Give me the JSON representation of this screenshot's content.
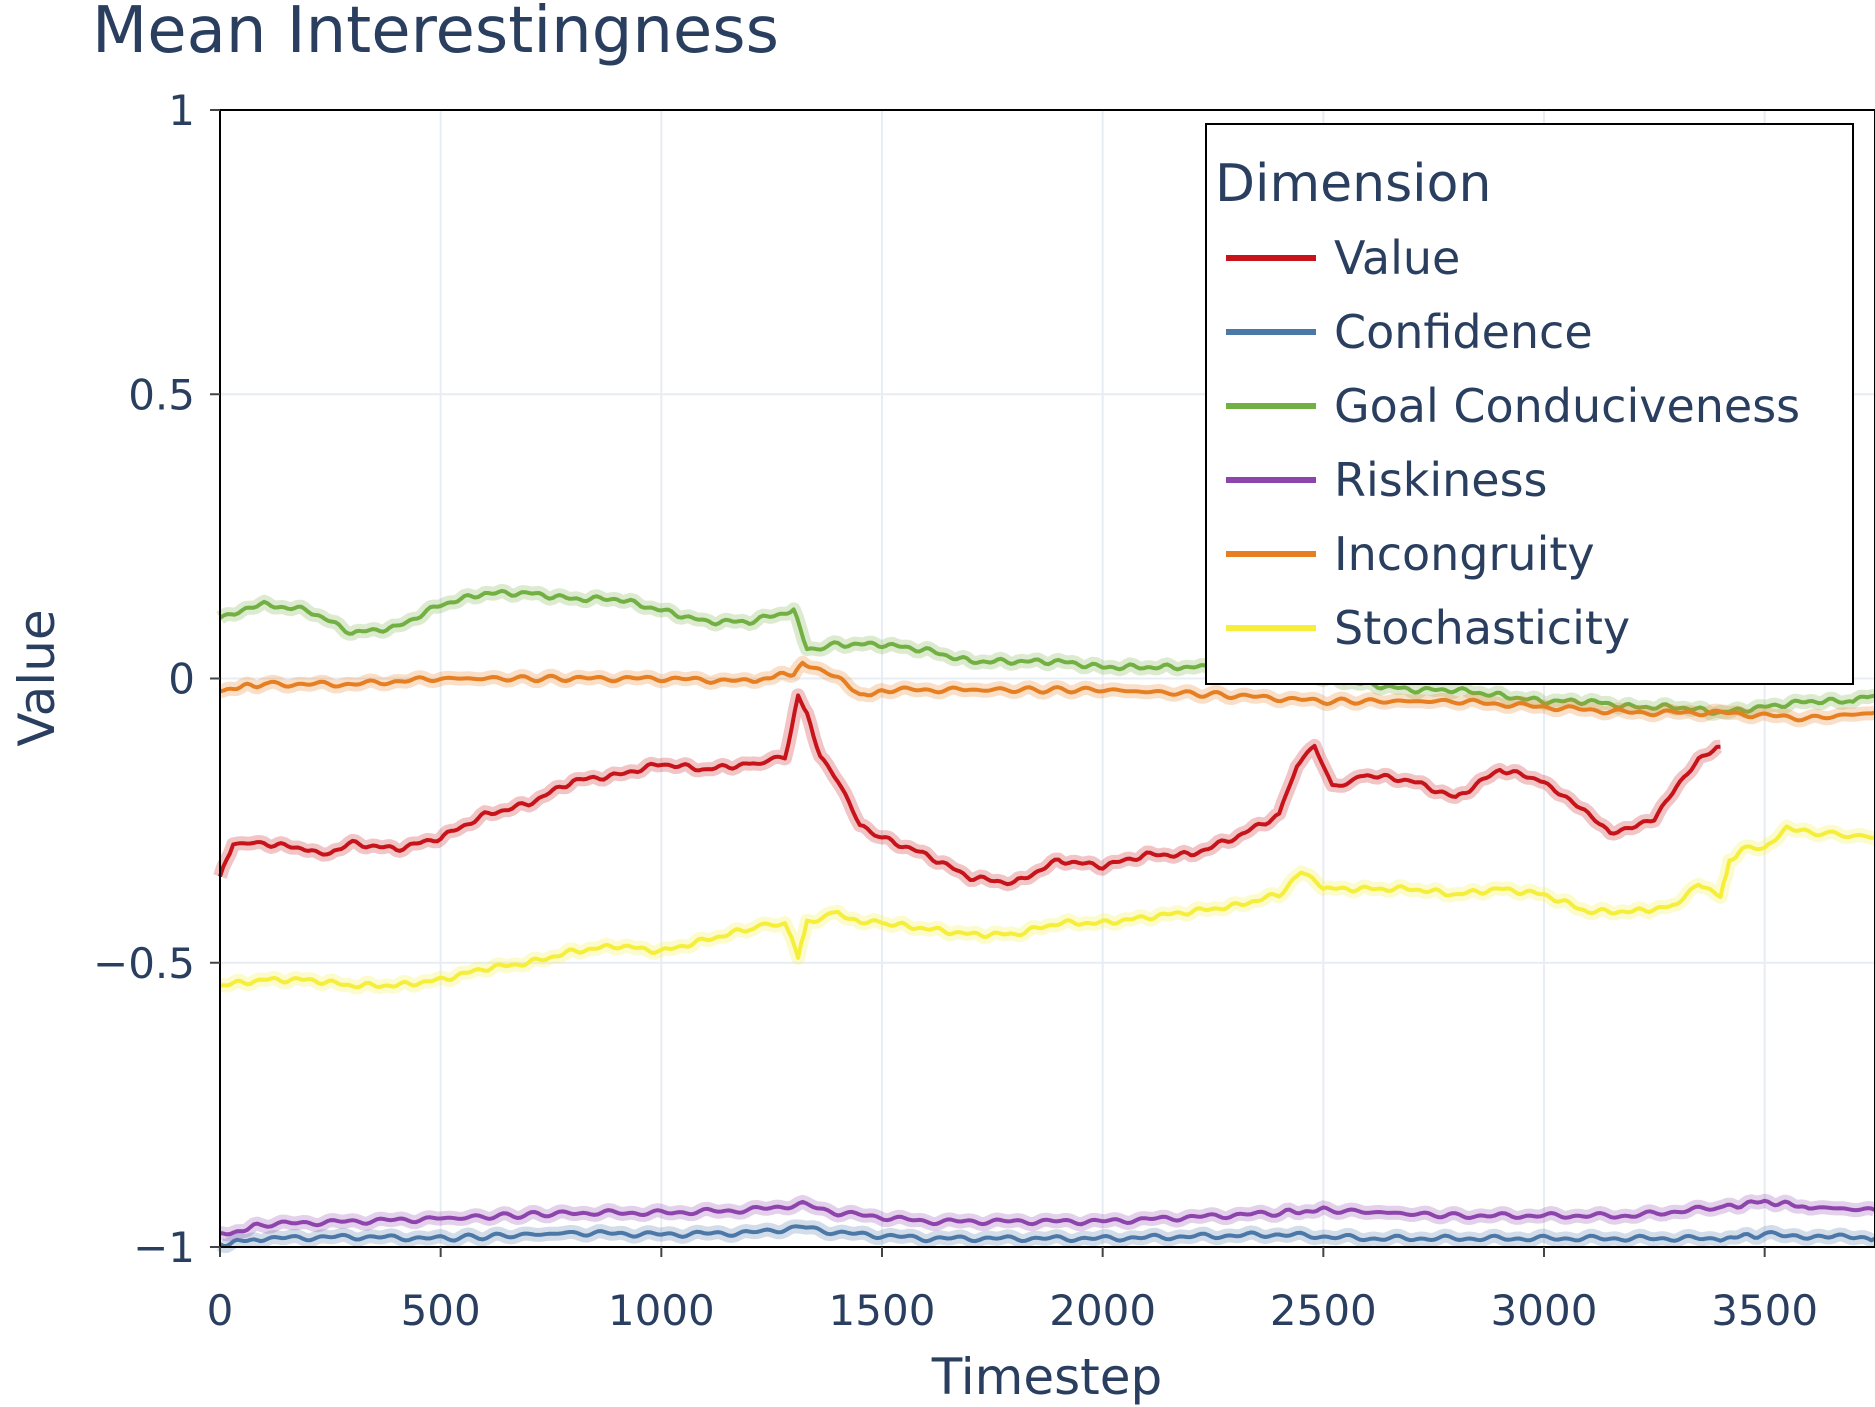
{
  "chart_data": {
    "type": "line",
    "title": "Mean Interestingness",
    "xlabel": "Timestep",
    "ylabel": "Value",
    "xlim": [
      0,
      3750
    ],
    "ylim": [
      -1,
      1
    ],
    "x_ticks": [
      0,
      500,
      1000,
      1500,
      2000,
      2500,
      3000,
      3500
    ],
    "x_tick_labels": [
      "0",
      "500",
      "1000",
      "1500",
      "2000",
      "2500",
      "3000",
      "3500"
    ],
    "y_ticks": [
      -1,
      -0.5,
      0,
      0.5,
      1
    ],
    "y_tick_labels": [
      "−1",
      "−0.5",
      "0",
      "0.5",
      "1"
    ],
    "grid": true,
    "legend": {
      "title": "Dimension",
      "position": "top-right"
    },
    "series": [
      {
        "name": "Value",
        "color": "#c7141a",
        "x": [
          0,
          30,
          100,
          200,
          250,
          300,
          400,
          500,
          600,
          700,
          800,
          900,
          1000,
          1100,
          1200,
          1280,
          1310,
          1330,
          1360,
          1400,
          1450,
          1500,
          1600,
          1700,
          1800,
          1900,
          2000,
          2100,
          2200,
          2300,
          2400,
          2440,
          2480,
          2520,
          2600,
          2700,
          2800,
          2900,
          3000,
          3050,
          3100,
          3150,
          3200,
          3250,
          3300,
          3350,
          3400
        ],
        "y": [
          -0.35,
          -0.29,
          -0.29,
          -0.3,
          -0.31,
          -0.29,
          -0.3,
          -0.28,
          -0.24,
          -0.22,
          -0.18,
          -0.17,
          -0.15,
          -0.16,
          -0.15,
          -0.14,
          -0.03,
          -0.06,
          -0.14,
          -0.18,
          -0.26,
          -0.28,
          -0.31,
          -0.35,
          -0.36,
          -0.32,
          -0.33,
          -0.31,
          -0.31,
          -0.28,
          -0.24,
          -0.15,
          -0.12,
          -0.19,
          -0.17,
          -0.18,
          -0.21,
          -0.16,
          -0.18,
          -0.21,
          -0.24,
          -0.27,
          -0.26,
          -0.25,
          -0.19,
          -0.14,
          -0.12
        ]
      },
      {
        "name": "Confidence",
        "color": "#4c78a8",
        "x": [
          0,
          100,
          300,
          500,
          800,
          1000,
          1200,
          1320,
          1400,
          1600,
          2000,
          2400,
          2600,
          3000,
          3400,
          3500,
          3750
        ],
        "y": [
          -0.995,
          -0.985,
          -0.982,
          -0.985,
          -0.975,
          -0.978,
          -0.975,
          -0.965,
          -0.975,
          -0.985,
          -0.985,
          -0.978,
          -0.985,
          -0.985,
          -0.985,
          -0.978,
          -0.985
        ]
      },
      {
        "name": "Goal Conduciveness",
        "color": "#72b043",
        "x": [
          0,
          50,
          100,
          200,
          300,
          400,
          500,
          600,
          700,
          800,
          900,
          1000,
          1100,
          1200,
          1300,
          1330,
          1400,
          1500,
          1600,
          1700,
          1800,
          1900,
          2000,
          2100,
          2200,
          2300,
          2400,
          2500,
          2600,
          2700,
          2800,
          2900,
          3000,
          3100,
          3200,
          3300,
          3400,
          3500,
          3600,
          3700,
          3750
        ],
        "y": [
          0.11,
          0.12,
          0.13,
          0.12,
          0.08,
          0.09,
          0.13,
          0.15,
          0.15,
          0.14,
          0.14,
          0.12,
          0.1,
          0.1,
          0.12,
          0.05,
          0.06,
          0.06,
          0.05,
          0.03,
          0.03,
          0.03,
          0.02,
          0.02,
          0.02,
          0.02,
          0.01,
          0.0,
          -0.01,
          -0.02,
          -0.02,
          -0.03,
          -0.04,
          -0.04,
          -0.05,
          -0.05,
          -0.06,
          -0.05,
          -0.04,
          -0.04,
          -0.03
        ]
      },
      {
        "name": "Riskiness",
        "color": "#8e44ad",
        "x": [
          0,
          100,
          300,
          500,
          800,
          1000,
          1200,
          1320,
          1400,
          1600,
          2000,
          2400,
          2500,
          2800,
          3200,
          3400,
          3500,
          3600,
          3750
        ],
        "y": [
          -0.98,
          -0.96,
          -0.955,
          -0.95,
          -0.94,
          -0.94,
          -0.935,
          -0.925,
          -0.94,
          -0.955,
          -0.955,
          -0.94,
          -0.935,
          -0.945,
          -0.945,
          -0.93,
          -0.92,
          -0.93,
          -0.935
        ]
      },
      {
        "name": "Incongruity",
        "color": "#e67e22",
        "x": [
          0,
          100,
          300,
          500,
          800,
          1000,
          1200,
          1300,
          1320,
          1400,
          1450,
          1500,
          1700,
          2000,
          2300,
          2500,
          2800,
          3000,
          3200,
          3400,
          3600,
          3750
        ],
        "y": [
          -0.02,
          -0.01,
          -0.01,
          0.0,
          0.0,
          0.0,
          -0.005,
          0.01,
          0.03,
          0.0,
          -0.03,
          -0.02,
          -0.02,
          -0.02,
          -0.03,
          -0.04,
          -0.04,
          -0.05,
          -0.06,
          -0.06,
          -0.07,
          -0.06
        ]
      },
      {
        "name": "Stochasticity",
        "color": "#f5ee3a",
        "x": [
          0,
          100,
          200,
          300,
          400,
          500,
          600,
          700,
          800,
          900,
          1000,
          1100,
          1200,
          1280,
          1310,
          1330,
          1400,
          1450,
          1500,
          1600,
          1700,
          1800,
          1900,
          2000,
          2100,
          2200,
          2300,
          2400,
          2450,
          2500,
          2600,
          2700,
          2800,
          2900,
          3000,
          3100,
          3200,
          3300,
          3350,
          3400,
          3420,
          3450,
          3500,
          3550,
          3600,
          3750
        ],
        "y": [
          -0.54,
          -0.53,
          -0.53,
          -0.54,
          -0.54,
          -0.53,
          -0.51,
          -0.5,
          -0.48,
          -0.47,
          -0.48,
          -0.46,
          -0.44,
          -0.43,
          -0.49,
          -0.43,
          -0.41,
          -0.43,
          -0.43,
          -0.44,
          -0.45,
          -0.45,
          -0.43,
          -0.43,
          -0.42,
          -0.41,
          -0.4,
          -0.38,
          -0.34,
          -0.37,
          -0.37,
          -0.37,
          -0.38,
          -0.37,
          -0.38,
          -0.41,
          -0.41,
          -0.4,
          -0.36,
          -0.38,
          -0.32,
          -0.3,
          -0.3,
          -0.26,
          -0.27,
          -0.28
        ]
      }
    ]
  }
}
